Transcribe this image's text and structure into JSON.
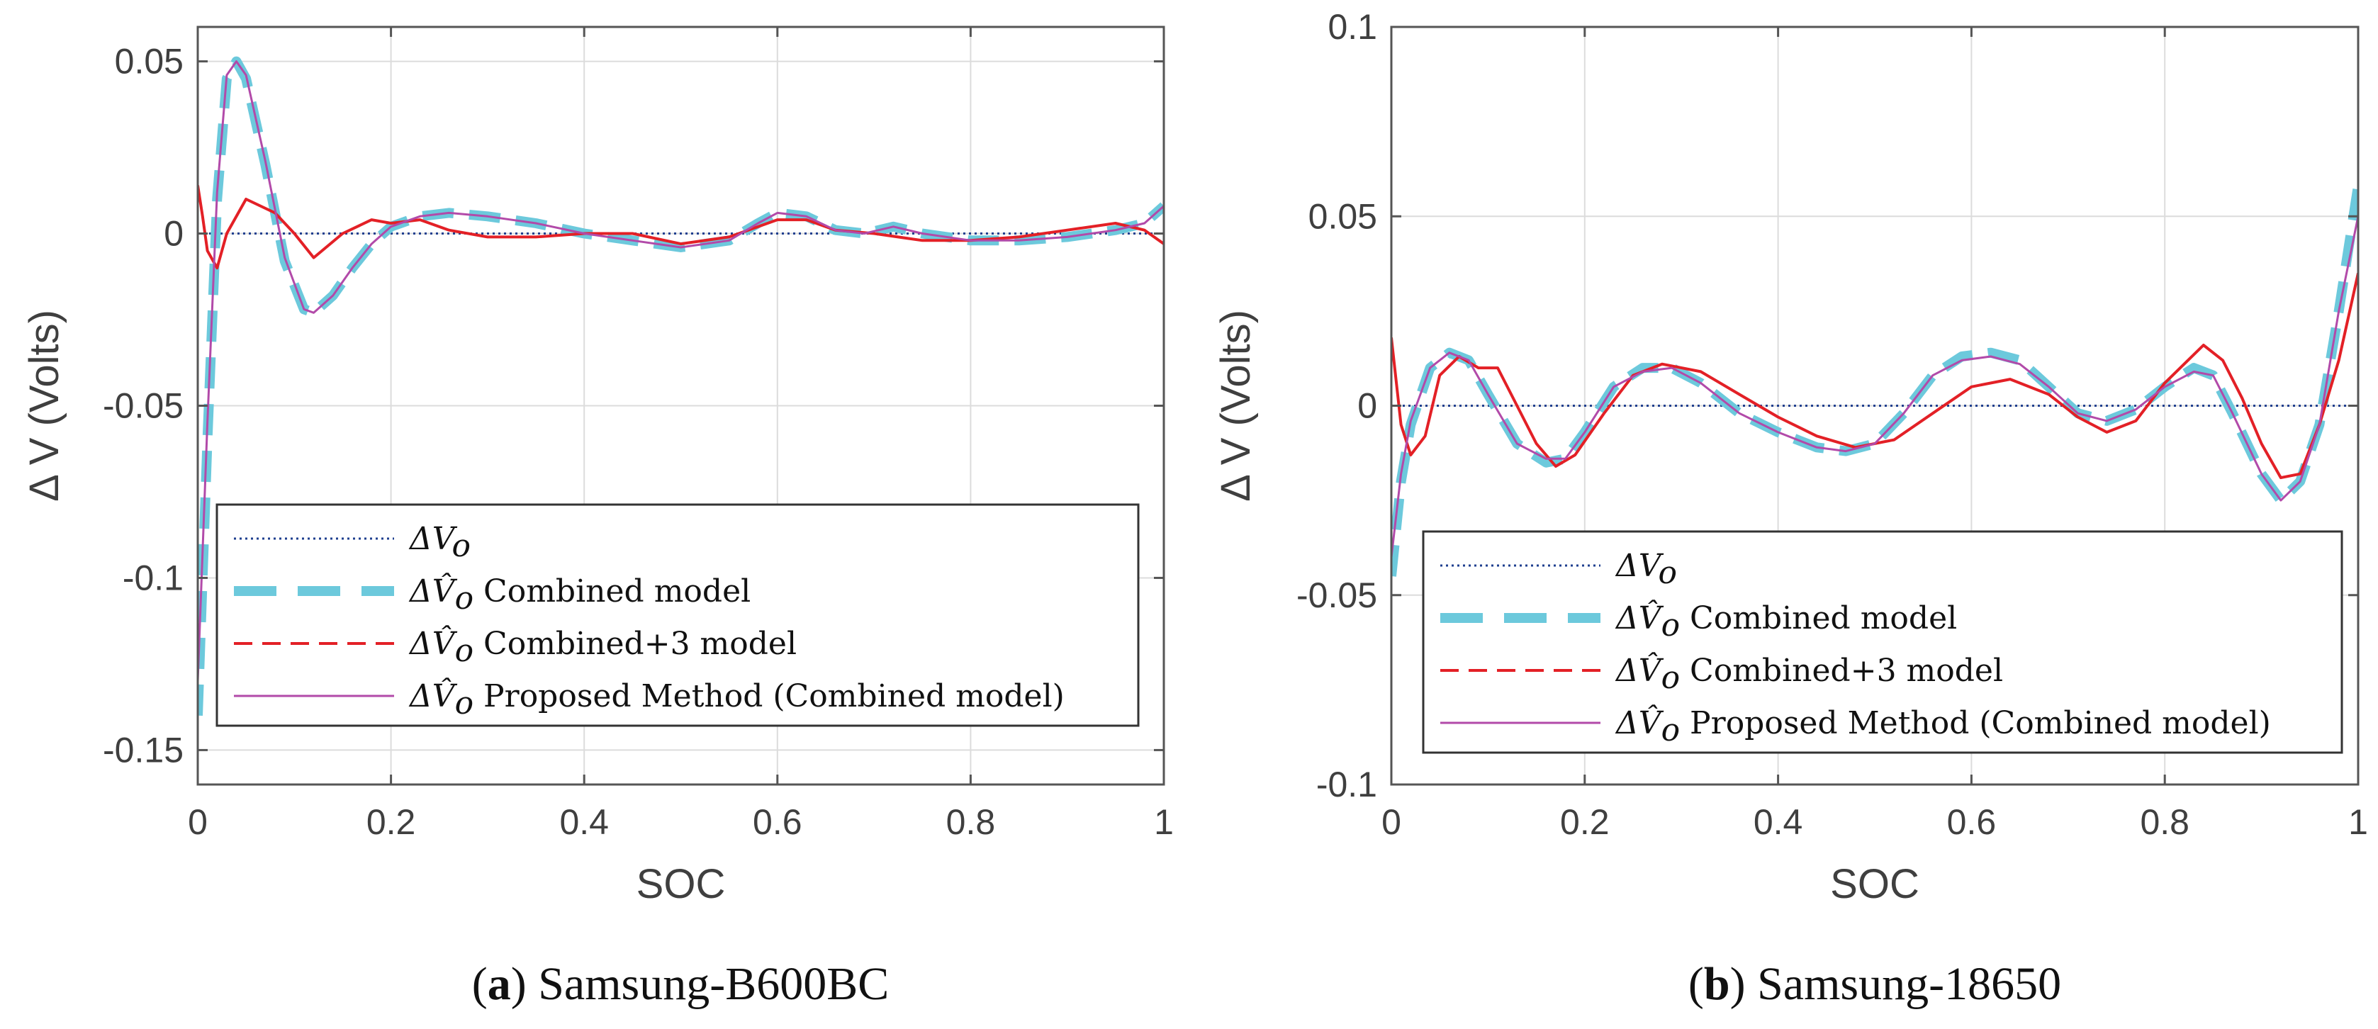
{
  "colors": {
    "reference": "#1f3f8f",
    "combined": "#6cc9dc",
    "combined3": "#e32026",
    "proposed": "#b24aa9",
    "grid": "#dcdcdc",
    "axis": "#555555"
  },
  "legend": {
    "symbol_ref": "ΔV",
    "symbol_ref_sub": "o",
    "symbol_hat": "ΔV̂",
    "symbol_hat_sub": "o",
    "entries": [
      {
        "label": "",
        "style": "reference"
      },
      {
        "label": "Combined model",
        "style": "combined"
      },
      {
        "label": "Combined+3 model",
        "style": "combined3"
      },
      {
        "label": "Proposed Method (Combined model)",
        "style": "proposed"
      }
    ]
  },
  "chart_data": [
    {
      "type": "line",
      "caption_letter": "(a)",
      "caption_text": " Samsung-B600BC",
      "xlabel": "SOC",
      "ylabel": "Δ V (Volts)",
      "xlim": [
        0,
        1
      ],
      "ylim": [
        -0.16,
        0.06
      ],
      "xticks": [
        0,
        0.2,
        0.4,
        0.6,
        0.8,
        1
      ],
      "xtick_labels": [
        "0",
        "0.2",
        "0.4",
        "0.6",
        "0.8",
        "1"
      ],
      "yticks": [
        0.05,
        0,
        -0.05,
        -0.1,
        -0.15
      ],
      "ytick_labels": [
        "0.05",
        "0",
        "-0.05",
        "-0.1",
        "-0.15"
      ],
      "legend_position": "bottom-right",
      "series": [
        {
          "name": "ΔVo",
          "style": "reference",
          "x": [
            0,
            1
          ],
          "y": [
            0,
            0
          ]
        },
        {
          "name": "ΔV̂o Combined model",
          "style": "combined",
          "x": [
            0,
            0.01,
            0.02,
            0.03,
            0.04,
            0.05,
            0.07,
            0.09,
            0.11,
            0.12,
            0.14,
            0.16,
            0.18,
            0.2,
            0.23,
            0.26,
            0.3,
            0.35,
            0.4,
            0.45,
            0.5,
            0.55,
            0.58,
            0.6,
            0.63,
            0.66,
            0.69,
            0.72,
            0.75,
            0.8,
            0.85,
            0.9,
            0.95,
            0.98,
            1
          ],
          "y": [
            -0.14,
            -0.06,
            0.01,
            0.045,
            0.05,
            0.045,
            0.02,
            -0.008,
            -0.022,
            -0.023,
            -0.018,
            -0.01,
            -0.003,
            0.002,
            0.005,
            0.006,
            0.005,
            0.003,
            0.0,
            -0.002,
            -0.004,
            -0.002,
            0.003,
            0.006,
            0.005,
            0.001,
            0.0,
            0.002,
            0.0,
            -0.002,
            -0.002,
            -0.001,
            0.001,
            0.003,
            0.008
          ]
        },
        {
          "name": "ΔV̂o Combined+3 model",
          "style": "combined3",
          "x": [
            0,
            0.005,
            0.01,
            0.02,
            0.03,
            0.05,
            0.08,
            0.1,
            0.12,
            0.15,
            0.18,
            0.2,
            0.23,
            0.26,
            0.3,
            0.35,
            0.4,
            0.45,
            0.5,
            0.55,
            0.6,
            0.63,
            0.66,
            0.7,
            0.75,
            0.8,
            0.85,
            0.9,
            0.95,
            0.98,
            1
          ],
          "y": [
            0.014,
            0.005,
            -0.005,
            -0.01,
            0.0,
            0.01,
            0.006,
            0.0,
            -0.007,
            0.0,
            0.004,
            0.003,
            0.004,
            0.001,
            -0.001,
            -0.001,
            0.0,
            0.0,
            -0.003,
            -0.001,
            0.004,
            0.004,
            0.001,
            0.0,
            -0.002,
            -0.002,
            -0.001,
            0.001,
            0.003,
            0.001,
            -0.003
          ]
        },
        {
          "name": "ΔV̂o Proposed Method (Combined model)",
          "style": "proposed",
          "x": [
            0,
            0.01,
            0.02,
            0.03,
            0.04,
            0.05,
            0.07,
            0.09,
            0.11,
            0.12,
            0.14,
            0.16,
            0.18,
            0.2,
            0.23,
            0.26,
            0.3,
            0.35,
            0.4,
            0.45,
            0.5,
            0.55,
            0.58,
            0.6,
            0.63,
            0.66,
            0.69,
            0.72,
            0.75,
            0.8,
            0.85,
            0.9,
            0.95,
            0.98,
            1
          ],
          "y": [
            -0.13,
            -0.055,
            0.012,
            0.046,
            0.05,
            0.046,
            0.021,
            -0.007,
            -0.022,
            -0.023,
            -0.018,
            -0.01,
            -0.003,
            0.002,
            0.005,
            0.006,
            0.005,
            0.003,
            0.0,
            -0.002,
            -0.004,
            -0.002,
            0.003,
            0.006,
            0.005,
            0.001,
            0.0,
            0.002,
            0.0,
            -0.002,
            -0.002,
            -0.001,
            0.001,
            0.003,
            0.008
          ]
        }
      ]
    },
    {
      "type": "line",
      "caption_letter": "(b)",
      "caption_text": " Samsung-18650",
      "xlabel": "SOC",
      "ylabel": "Δ V (Volts)",
      "xlim": [
        0,
        1
      ],
      "ylim": [
        -0.1,
        0.1
      ],
      "xticks": [
        0,
        0.2,
        0.4,
        0.6,
        0.8,
        1
      ],
      "xtick_labels": [
        "0",
        "0.2",
        "0.4",
        "0.6",
        "0.8",
        "1"
      ],
      "yticks": [
        0.1,
        0.05,
        0,
        -0.05,
        -0.1
      ],
      "ytick_labels": [
        "0.1",
        "0.05",
        "0",
        "-0.05",
        "-0.1"
      ],
      "legend_position": "bottom-right",
      "series": [
        {
          "name": "ΔVo",
          "style": "reference",
          "x": [
            0,
            1
          ],
          "y": [
            0,
            0
          ]
        },
        {
          "name": "ΔV̂o Combined model",
          "style": "combined",
          "x": [
            0,
            0.01,
            0.02,
            0.04,
            0.06,
            0.08,
            0.1,
            0.13,
            0.16,
            0.18,
            0.2,
            0.23,
            0.26,
            0.29,
            0.32,
            0.36,
            0.4,
            0.44,
            0.47,
            0.5,
            0.53,
            0.56,
            0.59,
            0.62,
            0.65,
            0.68,
            0.71,
            0.74,
            0.77,
            0.8,
            0.83,
            0.85,
            0.87,
            0.9,
            0.92,
            0.94,
            0.96,
            0.98,
            1
          ],
          "y": [
            -0.045,
            -0.02,
            -0.005,
            0.01,
            0.014,
            0.012,
            0.003,
            -0.01,
            -0.015,
            -0.014,
            -0.007,
            0.005,
            0.01,
            0.01,
            0.006,
            -0.002,
            -0.007,
            -0.011,
            -0.012,
            -0.01,
            -0.002,
            0.008,
            0.013,
            0.014,
            0.012,
            0.005,
            -0.002,
            -0.004,
            -0.001,
            0.005,
            0.01,
            0.008,
            -0.002,
            -0.018,
            -0.025,
            -0.02,
            -0.005,
            0.025,
            0.058
          ]
        },
        {
          "name": "ΔV̂o Combined+3 model",
          "style": "combined3",
          "x": [
            0,
            0.01,
            0.02,
            0.035,
            0.05,
            0.07,
            0.09,
            0.11,
            0.13,
            0.15,
            0.17,
            0.19,
            0.22,
            0.25,
            0.28,
            0.32,
            0.36,
            0.4,
            0.44,
            0.48,
            0.52,
            0.56,
            0.6,
            0.64,
            0.68,
            0.71,
            0.74,
            0.77,
            0.8,
            0.84,
            0.86,
            0.88,
            0.9,
            0.92,
            0.94,
            0.96,
            0.98,
            1
          ],
          "y": [
            0.018,
            -0.005,
            -0.013,
            -0.008,
            0.008,
            0.013,
            0.01,
            0.01,
            0.0,
            -0.01,
            -0.016,
            -0.013,
            -0.002,
            0.008,
            0.011,
            0.009,
            0.003,
            -0.003,
            -0.008,
            -0.011,
            -0.009,
            -0.002,
            0.005,
            0.007,
            0.003,
            -0.003,
            -0.007,
            -0.004,
            0.006,
            0.016,
            0.012,
            0.002,
            -0.01,
            -0.019,
            -0.018,
            -0.005,
            0.012,
            0.035
          ]
        },
        {
          "name": "ΔV̂o Proposed Method (Combined model)",
          "style": "proposed",
          "x": [
            0,
            0.01,
            0.02,
            0.04,
            0.06,
            0.08,
            0.1,
            0.13,
            0.16,
            0.18,
            0.2,
            0.23,
            0.26,
            0.29,
            0.32,
            0.36,
            0.4,
            0.44,
            0.47,
            0.5,
            0.53,
            0.56,
            0.59,
            0.62,
            0.65,
            0.68,
            0.71,
            0.74,
            0.77,
            0.8,
            0.83,
            0.85,
            0.87,
            0.9,
            0.92,
            0.94,
            0.96,
            0.98,
            1
          ],
          "y": [
            -0.04,
            -0.018,
            -0.004,
            0.01,
            0.014,
            0.012,
            0.003,
            -0.01,
            -0.014,
            -0.014,
            -0.007,
            0.005,
            0.009,
            0.01,
            0.006,
            -0.002,
            -0.007,
            -0.011,
            -0.012,
            -0.01,
            -0.002,
            0.008,
            0.012,
            0.013,
            0.011,
            0.005,
            -0.002,
            -0.004,
            -0.001,
            0.005,
            0.009,
            0.008,
            -0.002,
            -0.018,
            -0.025,
            -0.02,
            -0.005,
            0.025,
            0.05
          ]
        }
      ]
    }
  ]
}
